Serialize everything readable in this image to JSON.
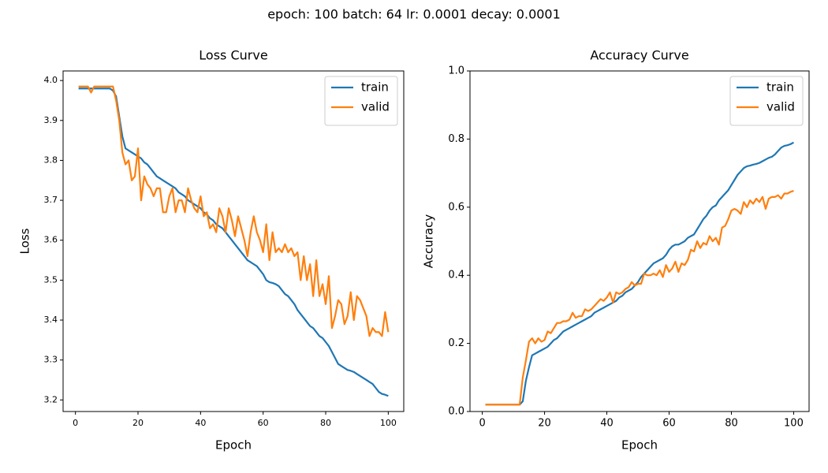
{
  "title": "epoch: 100 batch: 64 lr: 0.0001 decay: 0.0001",
  "chart_data": [
    {
      "type": "line",
      "title": "Loss Curve",
      "x_label": "Epoch",
      "y_label": "Loss",
      "x": [
        1,
        2,
        3,
        4,
        5,
        6,
        7,
        8,
        9,
        10,
        11,
        12,
        13,
        14,
        15,
        16,
        17,
        18,
        19,
        20,
        21,
        22,
        23,
        24,
        25,
        26,
        27,
        28,
        29,
        30,
        31,
        32,
        33,
        34,
        35,
        36,
        37,
        38,
        39,
        40,
        41,
        42,
        43,
        44,
        45,
        46,
        47,
        48,
        49,
        50,
        51,
        52,
        53,
        54,
        55,
        56,
        57,
        58,
        59,
        60,
        61,
        62,
        63,
        64,
        65,
        66,
        67,
        68,
        69,
        70,
        71,
        72,
        73,
        74,
        75,
        76,
        77,
        78,
        79,
        80,
        81,
        82,
        83,
        84,
        85,
        86,
        87,
        88,
        89,
        90,
        91,
        92,
        93,
        94,
        95,
        96,
        97,
        98,
        99,
        100
      ],
      "series": [
        {
          "name": "train",
          "color": "#1f77b4",
          "values": [
            3.98,
            3.98,
            3.98,
            3.98,
            3.98,
            3.98,
            3.98,
            3.98,
            3.98,
            3.98,
            3.98,
            3.975,
            3.96,
            3.91,
            3.86,
            3.83,
            3.825,
            3.82,
            3.815,
            3.81,
            3.805,
            3.795,
            3.79,
            3.78,
            3.77,
            3.76,
            3.755,
            3.75,
            3.745,
            3.74,
            3.735,
            3.73,
            3.72,
            3.715,
            3.71,
            3.7,
            3.695,
            3.69,
            3.685,
            3.68,
            3.67,
            3.665,
            3.655,
            3.65,
            3.64,
            3.635,
            3.63,
            3.62,
            3.61,
            3.6,
            3.59,
            3.58,
            3.57,
            3.56,
            3.55,
            3.545,
            3.54,
            3.535,
            3.525,
            3.515,
            3.5,
            3.495,
            3.493,
            3.49,
            3.485,
            3.475,
            3.465,
            3.46,
            3.45,
            3.44,
            3.425,
            3.415,
            3.405,
            3.395,
            3.385,
            3.38,
            3.37,
            3.36,
            3.355,
            3.345,
            3.335,
            3.32,
            3.305,
            3.29,
            3.285,
            3.28,
            3.275,
            3.273,
            3.27,
            3.265,
            3.26,
            3.255,
            3.25,
            3.245,
            3.24,
            3.23,
            3.22,
            3.215,
            3.213,
            3.21
          ]
        },
        {
          "name": "valid",
          "color": "#ff7f0e",
          "values": [
            3.985,
            3.985,
            3.985,
            3.985,
            3.97,
            3.985,
            3.985,
            3.985,
            3.985,
            3.985,
            3.985,
            3.985,
            3.95,
            3.9,
            3.82,
            3.79,
            3.8,
            3.75,
            3.76,
            3.83,
            3.7,
            3.76,
            3.74,
            3.73,
            3.71,
            3.73,
            3.73,
            3.67,
            3.67,
            3.71,
            3.73,
            3.67,
            3.7,
            3.7,
            3.67,
            3.73,
            3.7,
            3.68,
            3.67,
            3.71,
            3.66,
            3.67,
            3.63,
            3.64,
            3.62,
            3.68,
            3.66,
            3.62,
            3.68,
            3.65,
            3.61,
            3.66,
            3.63,
            3.6,
            3.56,
            3.62,
            3.66,
            3.62,
            3.6,
            3.57,
            3.64,
            3.55,
            3.62,
            3.57,
            3.58,
            3.57,
            3.59,
            3.57,
            3.58,
            3.56,
            3.57,
            3.5,
            3.56,
            3.5,
            3.54,
            3.46,
            3.55,
            3.46,
            3.49,
            3.44,
            3.51,
            3.38,
            3.41,
            3.45,
            3.44,
            3.39,
            3.41,
            3.47,
            3.4,
            3.46,
            3.45,
            3.43,
            3.41,
            3.36,
            3.38,
            3.37,
            3.37,
            3.36,
            3.42,
            3.37
          ]
        }
      ],
      "xlim": [
        -3.95,
        104.95
      ],
      "xticks": [
        0,
        20,
        40,
        60,
        80,
        100
      ],
      "ylim": [
        3.171,
        4.024
      ],
      "yticks": [
        3.2,
        3.3,
        3.4,
        3.5,
        3.6,
        3.7,
        3.8,
        3.9,
        {
          "value": 4.0,
          "label": "4.0"
        }
      ],
      "legend": "upper right",
      "grid": false
    },
    {
      "type": "line",
      "title": "Accuracy Curve",
      "x_label": "Epoch",
      "y_label": "Accuracy",
      "x": [
        1,
        2,
        3,
        4,
        5,
        6,
        7,
        8,
        9,
        10,
        11,
        12,
        13,
        14,
        15,
        16,
        17,
        18,
        19,
        20,
        21,
        22,
        23,
        24,
        25,
        26,
        27,
        28,
        29,
        30,
        31,
        32,
        33,
        34,
        35,
        36,
        37,
        38,
        39,
        40,
        41,
        42,
        43,
        44,
        45,
        46,
        47,
        48,
        49,
        50,
        51,
        52,
        53,
        54,
        55,
        56,
        57,
        58,
        59,
        60,
        61,
        62,
        63,
        64,
        65,
        66,
        67,
        68,
        69,
        70,
        71,
        72,
        73,
        74,
        75,
        76,
        77,
        78,
        79,
        80,
        81,
        82,
        83,
        84,
        85,
        86,
        87,
        88,
        89,
        90,
        91,
        92,
        93,
        94,
        95,
        96,
        97,
        98,
        99,
        100
      ],
      "series": [
        {
          "name": "train",
          "color": "#1f77b4",
          "values": [
            0.02,
            0.02,
            0.02,
            0.02,
            0.02,
            0.02,
            0.02,
            0.02,
            0.02,
            0.02,
            0.02,
            0.02,
            0.03,
            0.09,
            0.13,
            0.165,
            0.17,
            0.175,
            0.18,
            0.185,
            0.19,
            0.2,
            0.21,
            0.215,
            0.225,
            0.235,
            0.24,
            0.245,
            0.25,
            0.255,
            0.26,
            0.265,
            0.27,
            0.275,
            0.28,
            0.29,
            0.295,
            0.3,
            0.305,
            0.31,
            0.315,
            0.32,
            0.325,
            0.335,
            0.34,
            0.35,
            0.355,
            0.36,
            0.37,
            0.38,
            0.395,
            0.405,
            0.415,
            0.425,
            0.435,
            0.44,
            0.445,
            0.45,
            0.46,
            0.475,
            0.485,
            0.49,
            0.49,
            0.495,
            0.5,
            0.51,
            0.515,
            0.52,
            0.535,
            0.55,
            0.565,
            0.575,
            0.59,
            0.6,
            0.605,
            0.62,
            0.63,
            0.64,
            0.65,
            0.665,
            0.68,
            0.695,
            0.705,
            0.715,
            0.72,
            0.722,
            0.725,
            0.727,
            0.73,
            0.735,
            0.74,
            0.745,
            0.748,
            0.755,
            0.765,
            0.775,
            0.78,
            0.782,
            0.785,
            0.79
          ]
        },
        {
          "name": "valid",
          "color": "#ff7f0e",
          "values": [
            0.02,
            0.02,
            0.02,
            0.02,
            0.02,
            0.02,
            0.02,
            0.02,
            0.02,
            0.02,
            0.02,
            0.02,
            0.1,
            0.15,
            0.205,
            0.215,
            0.2,
            0.215,
            0.205,
            0.21,
            0.235,
            0.23,
            0.245,
            0.26,
            0.26,
            0.265,
            0.265,
            0.27,
            0.29,
            0.275,
            0.28,
            0.28,
            0.3,
            0.295,
            0.3,
            0.31,
            0.32,
            0.33,
            0.325,
            0.335,
            0.35,
            0.32,
            0.35,
            0.345,
            0.35,
            0.36,
            0.365,
            0.38,
            0.37,
            0.375,
            0.375,
            0.405,
            0.4,
            0.4,
            0.405,
            0.4,
            0.415,
            0.395,
            0.43,
            0.41,
            0.42,
            0.44,
            0.41,
            0.435,
            0.43,
            0.445,
            0.475,
            0.47,
            0.5,
            0.48,
            0.495,
            0.49,
            0.515,
            0.5,
            0.51,
            0.49,
            0.54,
            0.545,
            0.565,
            0.59,
            0.595,
            0.59,
            0.58,
            0.615,
            0.6,
            0.62,
            0.61,
            0.625,
            0.615,
            0.63,
            0.595,
            0.625,
            0.63,
            0.63,
            0.635,
            0.625,
            0.64,
            0.64,
            0.645,
            0.648
          ]
        }
      ],
      "xlim": [
        -3.95,
        104.95
      ],
      "xticks": [
        0,
        20,
        40,
        60,
        80,
        100
      ],
      "ylim": [
        0,
        1
      ],
      "yticks": [
        {
          "value": 0,
          "label": "0.0"
        },
        0.2,
        0.4,
        0.6,
        0.8,
        {
          "value": 1,
          "label": "1.0"
        }
      ],
      "legend": "upper right",
      "grid": false
    }
  ]
}
